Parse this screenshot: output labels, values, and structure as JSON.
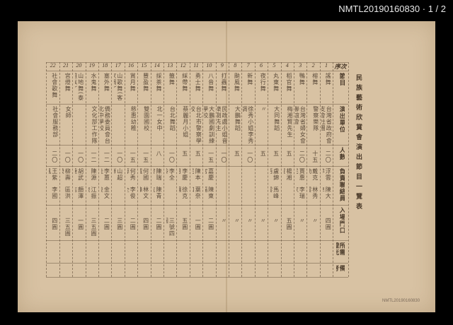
{
  "viewer": {
    "doc_id": "NMTL20190160830",
    "page_indicator": "1 / 2"
  },
  "document": {
    "title": "民族藝術欣賞會演出節目一覽表",
    "stamp": "NMTL20190160830",
    "header_column": {
      "seq": "序次",
      "program": "節目",
      "unit": "演出單位",
      "count": "人數",
      "liaison": "負責聯絡員",
      "entry": "入場門口",
      "lights": "所需燈光",
      "remarks": "備考"
    },
    "rows": [
      {
        "no": "1",
        "program": "謠舞",
        "unit": "台灣省政府會支會社團",
        "count": "二〇",
        "liaison1": "浮雲萍",
        "liaison2": "陳大卓",
        "entry": "四圓"
      },
      {
        "no": "2",
        "program": "榕舞",
        "unit": "警察樂隊",
        "count": "十五",
        "liaison1": "戴克勤",
        "liaison2": "林秀雲",
        "entry": "〃"
      },
      {
        "no": "3",
        "program": "鴨舞",
        "unit": "台灣省婦女會聯誼會",
        "count": "二〇",
        "liaison1": "賈惠民",
        "liaison2": "李瑞家",
        "entry": "〃"
      },
      {
        "no": "4",
        "program": "稻官舞",
        "unit": "梅湘賢先生",
        "count": "五",
        "liaison1": "楊湘賢",
        "liaison2": "",
        "entry": "五圓"
      },
      {
        "no": "5",
        "program": "丸東舞",
        "unit": "大同舞蹈",
        "count": "五",
        "liaison1": "盧錦西",
        "liaison2": "馬峰雲",
        "entry": "〃"
      },
      {
        "no": "6",
        "program": "夜行舞",
        "unit": "〃",
        "count": "五",
        "liaison1": "",
        "liaison2": "",
        "entry": "〃"
      },
      {
        "no": "7",
        "program": "新舞",
        "unit": "徐秀小姐李秀調",
        "count": "一〇",
        "liaison1": "",
        "liaison2": "",
        "entry": "〃"
      },
      {
        "no": "8",
        "program": "颱風舞",
        "unit": "大鵬舞蹈",
        "count": "五",
        "liaison1": "",
        "liaison2": "",
        "entry": "〃"
      },
      {
        "no": "9",
        "program": "打蟲舞",
        "unit": "民政處小姐音樂劇先生",
        "count": "一〇",
        "liaison1": "",
        "liaison2": "",
        "entry": "〃"
      },
      {
        "no": "10",
        "program": "八音舞",
        "unit": "大鵬國劇訓練學校",
        "count": "一五",
        "liaison1": "嘉慶宮",
        "liaison2": "陳東福",
        "entry": "二圓"
      },
      {
        "no": "11",
        "program": "勇士舞",
        "unit": "台北市警察學校",
        "count": "五",
        "liaison1": "陳本民",
        "liaison2": "葉奈和",
        "entry": "一圓"
      },
      {
        "no": "12",
        "program": "綵帶舞",
        "unit": "蔡麗月小姐",
        "count": "五",
        "liaison1": "李慶月",
        "liaison2": "徐克讓",
        "entry": "五圓"
      },
      {
        "no": "13",
        "program": "籤舞",
        "unit": "台北舞蹈",
        "count": "一〇",
        "liaison1": "李全齡",
        "liaison2": "",
        "entry": "三號四圓"
      },
      {
        "no": "14",
        "program": "採茶舞",
        "unit": "北一女中",
        "count": "八",
        "liaison1": "陳瑞發",
        "liaison2": "陳青位",
        "entry": "二圓"
      },
      {
        "no": "15",
        "program": "豐盈舞",
        "unit": "雙園國校",
        "count": "一五",
        "liaison1": "何國城",
        "liaison2": "林文鋒",
        "entry": "四圓"
      },
      {
        "no": "16",
        "program": "賞月舞",
        "unit": "慈惠幼稚",
        "count": "一五",
        "liaison1": "何秀蓉",
        "liaison2": "李俊全",
        "entry": "二圓"
      },
      {
        "no": "17",
        "program": "山歌舞(客家調)",
        "unit": "",
        "count": "一〇",
        "liaison1": "山超群",
        "liaison2": "",
        "entry": "三圓"
      },
      {
        "no": "18",
        "program": "塞外舞",
        "unit": "僑務委員會台北中學校",
        "count": "一二",
        "liaison1": "李蕙佳",
        "liaison2": "金文俊",
        "entry": "二圓"
      },
      {
        "no": "19",
        "program": "水鬼舞",
        "unit": "文化部工作隊",
        "count": "一二",
        "liaison1": "陳源",
        "liaison2": "江振東",
        "entry": "三五圓"
      },
      {
        "no": "20",
        "program": "山地舞(泰雅族)",
        "unit": "",
        "count": "一〇",
        "liaison1": "胡武達",
        "liaison2": "顏澤吉",
        "entry": "一圓"
      },
      {
        "no": "21",
        "program": "宮燈舞",
        "unit": "女師",
        "count": "一〇",
        "liaison1": "柳壽榮",
        "liaison2": "區洪",
        "entry": "三五圓"
      },
      {
        "no": "22",
        "program": "社會歌舞",
        "unit": "社會服務部",
        "count": "二〇",
        "liaison1": "王紫鳳",
        "liaison2": "李國",
        "entry": "四圓"
      }
    ]
  },
  "colors": {
    "paper": "#d8c2a3",
    "ink": "#5d4c3b",
    "background": "#000000"
  }
}
